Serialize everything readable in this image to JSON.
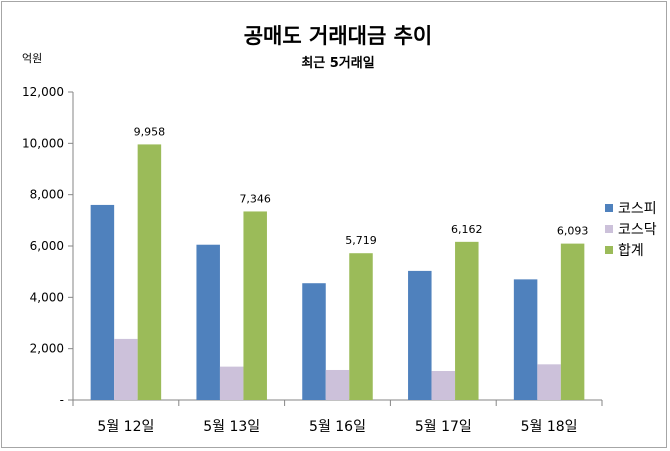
{
  "chart_data": {
    "type": "bar",
    "title": "공매도 거래대금 추이",
    "subtitle": "최근 5거래일",
    "ylabel": "억원",
    "categories": [
      "5월 12일",
      "5월 13일",
      "5월 16일",
      "5월 17일",
      "5월 18일"
    ],
    "series": [
      {
        "name": "코스피",
        "color": "#4f81bd",
        "values": [
          7600,
          6050,
          4550,
          5030,
          4700
        ]
      },
      {
        "name": "코스닥",
        "color": "#ccc1da",
        "values": [
          2380,
          1300,
          1170,
          1130,
          1390
        ]
      },
      {
        "name": "합계",
        "color": "#9bbb59",
        "values": [
          9958,
          7346,
          5719,
          6162,
          6093
        ]
      }
    ],
    "data_labels": [
      "9,958",
      "7,346",
      "5,719",
      "6,162",
      "6,093"
    ],
    "ylim": [
      0,
      12000
    ],
    "yticks": [
      0,
      2000,
      4000,
      6000,
      8000,
      10000,
      12000
    ],
    "ytick_labels": [
      "-",
      "2,000",
      "4,000",
      "6,000",
      "8,000",
      "10,000",
      "12,000"
    ],
    "legend": "right",
    "grid": false
  }
}
